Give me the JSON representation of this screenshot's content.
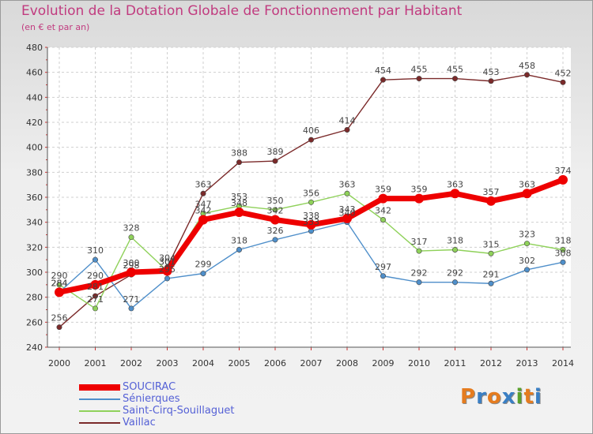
{
  "title": "Evolution de la Dotation Globale de Fonctionnement par Habitant",
  "subtitle": "(en € et par an)",
  "brand": {
    "text": "Proxiti",
    "colors": [
      "#e57c1f",
      "#3a7fc4",
      "#e57c1f",
      "#3a7fc4",
      "#5aa02c",
      "#e57c1f",
      "#3a7fc4"
    ]
  },
  "chart_data": {
    "type": "line",
    "title": "Evolution de la Dotation Globale de Fonctionnement par Habitant",
    "subtitle": "(en € et par an)",
    "xlabel": "",
    "ylabel": "",
    "ylim": [
      240,
      480
    ],
    "yticks": [
      240,
      260,
      280,
      300,
      320,
      340,
      360,
      380,
      400,
      420,
      440,
      460,
      480
    ],
    "grid": true,
    "legend_position": "bottom-left",
    "x": [
      "2000",
      "2001",
      "2002",
      "2003",
      "2004",
      "2005",
      "2006",
      "2007",
      "2008",
      "2009",
      "2010",
      "2011",
      "2012",
      "2013",
      "2014"
    ],
    "series": [
      {
        "name": "Vaillac",
        "color": "#7b2a2a",
        "values": [
          256,
          281,
          298,
          304,
          363,
          388,
          389,
          406,
          414,
          454,
          455,
          455,
          453,
          458,
          452
        ]
      },
      {
        "name": "Saint-Cirq-Souillaguet",
        "color": "#8fd15a",
        "values": [
          290,
          271,
          328,
          301,
          347,
          353,
          350,
          356,
          363,
          342,
          317,
          318,
          315,
          323,
          318
        ]
      },
      {
        "name": "Sénierques",
        "color": "#4f8fca",
        "values": [
          284,
          310,
          271,
          295,
          299,
          318,
          326,
          333,
          340,
          297,
          292,
          292,
          291,
          302,
          308
        ]
      },
      {
        "name": "SOUCIRAC",
        "color": "#ee0000",
        "values": [
          284,
          290,
          300,
          301,
          342,
          348,
          342,
          338,
          343,
          359,
          359,
          363,
          357,
          363,
          374
        ]
      }
    ]
  }
}
